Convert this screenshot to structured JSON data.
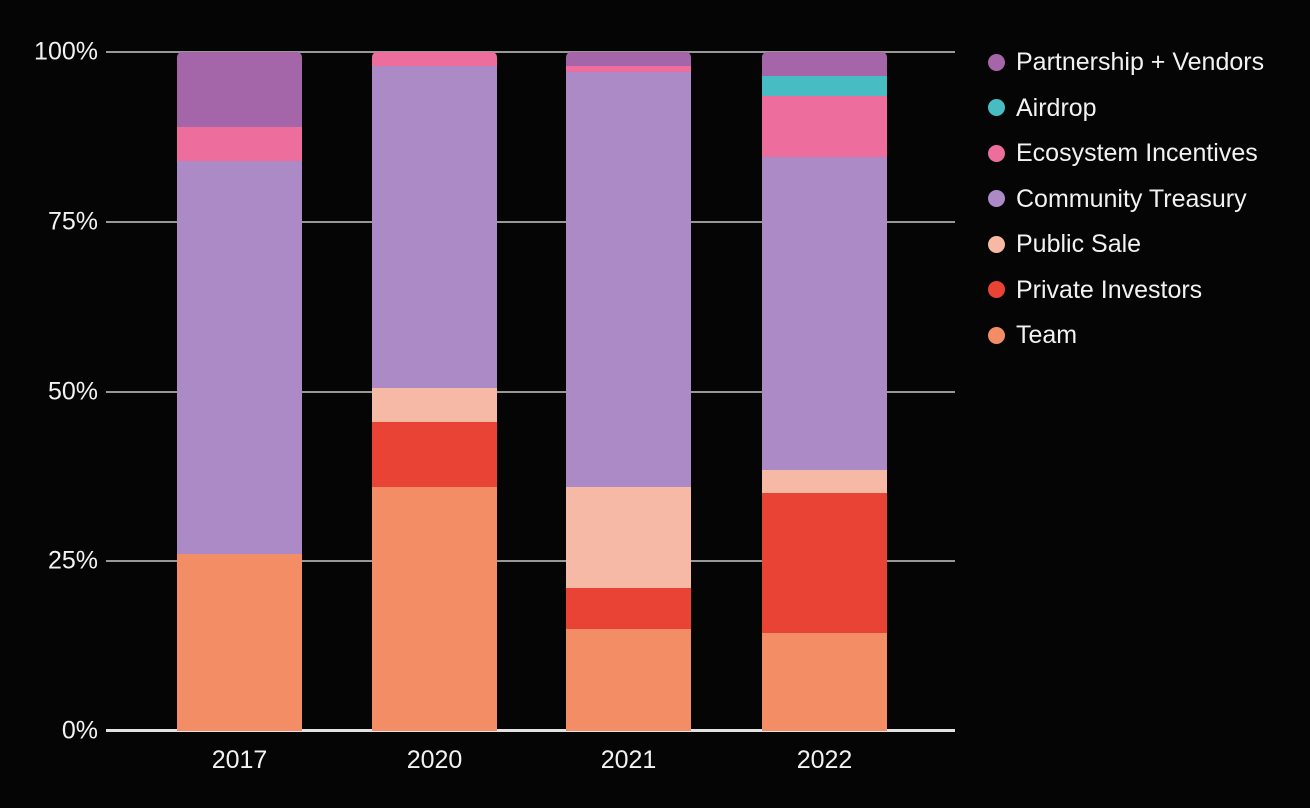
{
  "chart_data": {
    "type": "bar",
    "stacked": true,
    "percent_stacked": true,
    "title": "",
    "xlabel": "",
    "ylabel": "",
    "grid": true,
    "legend_position": "right",
    "categories": [
      "2017",
      "2020",
      "2021",
      "2022"
    ],
    "series": [
      {
        "name": "Partnership + Vendors",
        "color": "#a565a9",
        "values": [
          11,
          0,
          2,
          3.5
        ]
      },
      {
        "name": "Airdrop",
        "color": "#47bdc3",
        "values": [
          0,
          0,
          0,
          3
        ]
      },
      {
        "name": "Ecosystem Incentives",
        "color": "#ed6d9c",
        "values": [
          5,
          2,
          1,
          9
        ]
      },
      {
        "name": "Community Treasury",
        "color": "#ab8ac5",
        "values": [
          58,
          47.5,
          61,
          46
        ]
      },
      {
        "name": "Public Sale",
        "color": "#f5b9a5",
        "values": [
          0,
          5,
          15,
          3.5
        ]
      },
      {
        "name": "Private Investors",
        "color": "#e84334",
        "values": [
          0,
          9.5,
          6,
          20.5
        ]
      },
      {
        "name": "Team",
        "color": "#f28d66",
        "values": [
          26,
          36,
          15,
          14.5
        ]
      }
    ],
    "y_axis": {
      "min": 0,
      "max": 100,
      "ticks": [
        "100%",
        "75%",
        "50%",
        "25%",
        "0%"
      ],
      "tick_values": [
        100,
        75,
        50,
        25,
        0
      ]
    }
  },
  "colors": {
    "background": "#050505",
    "gridline": "#989898",
    "baseline": "#e2e2e2",
    "tick_text": "#f2f2f2",
    "legend_text": "#f2f2f2"
  }
}
